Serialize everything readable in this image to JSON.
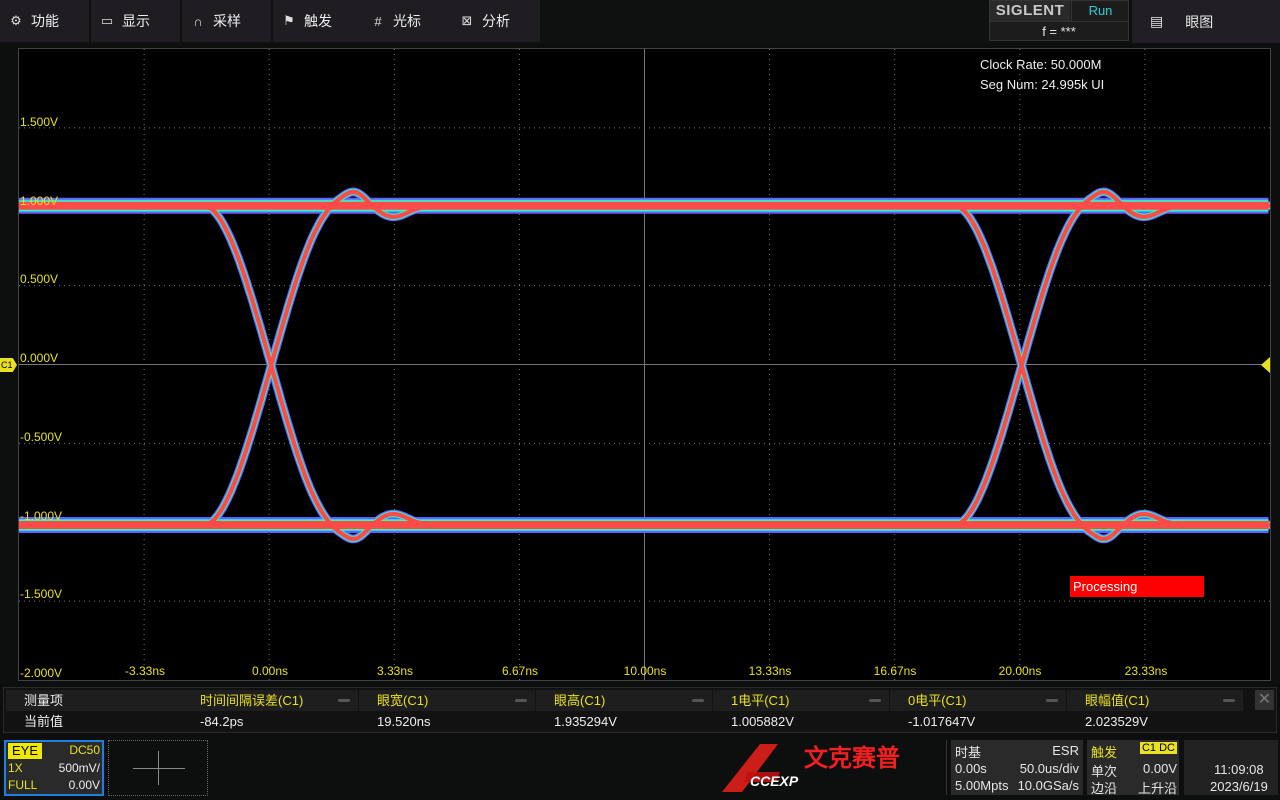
{
  "menu": [
    {
      "icon": "gear-icon",
      "label": "功能"
    },
    {
      "icon": "monitor-icon",
      "label": "显示"
    },
    {
      "icon": "acquire-icon",
      "label": "采样"
    },
    {
      "icon": "flag-icon",
      "label": "触发"
    },
    {
      "icon": "cursor-icon",
      "label": "光标"
    },
    {
      "icon": "analysis-icon",
      "label": "分析"
    }
  ],
  "brand": {
    "logo": "SIGLENT",
    "status": "Run",
    "freq": "f = ***"
  },
  "mode_button": {
    "icon": "document-icon",
    "label": "眼图"
  },
  "plot": {
    "clock_rate": "Clock Rate: 50.000M",
    "seg_num": "Seg Num: 24.995k UI",
    "y_labels": [
      "1.500V",
      "1.000V",
      "0.500V",
      "0.000V",
      "-0.500V",
      "-1.000V",
      "-1.500V",
      "-2.000V"
    ],
    "x_labels": [
      "-3.33ns",
      "0.00ns",
      "3.33ns",
      "6.67ns",
      "10.00ns",
      "13.33ns",
      "16.67ns",
      "20.00ns",
      "23.33ns"
    ],
    "channel_marker": "C1",
    "processing": "Processing",
    "x_range_ns": [
      -6.67,
      26.67
    ],
    "y_range_v": [
      -2.0,
      2.0
    ],
    "eye": {
      "high_v": 1.005882,
      "low_v": -1.017647,
      "crossings_ns": [
        0.0,
        20.0
      ],
      "ui_ns": 20.0
    },
    "colors": {
      "core": "#ff4a4a",
      "mid": "#3dff9a",
      "edge": "#22d8ff",
      "outer": "#6a5cff",
      "grid": "#777777",
      "label": "#e8e020"
    }
  },
  "measurements": {
    "row_label_header": "测量项",
    "row_label_value": "当前值",
    "items": [
      {
        "name": "时间间隔误差(C1)",
        "value": "-84.2ps"
      },
      {
        "name": "眼宽(C1)",
        "value": "19.520ns"
      },
      {
        "name": "眼高(C1)",
        "value": "1.935294V"
      },
      {
        "name": "1电平(C1)",
        "value": "1.005882V"
      },
      {
        "name": "0电平(C1)",
        "value": "-1.017647V"
      },
      {
        "name": "眼幅值(C1)",
        "value": "2.023529V"
      }
    ]
  },
  "channel": {
    "mode": "EYE",
    "coupling": "DC50",
    "probe": "1X",
    "scale": "500mV/",
    "bandwidth": "FULL",
    "offset": "0.00V"
  },
  "timebase": {
    "title": "时基",
    "mode": "ESR",
    "delay": "0.00s",
    "scale": "50.0us/div",
    "points": "5.00Mpts",
    "rate": "10.0GSa/s"
  },
  "trigger": {
    "title": "触发",
    "source": "C1 DC",
    "sweep": "单次",
    "level": "0.00V",
    "type": "边沿",
    "slope": "上升沿"
  },
  "clock": {
    "time": "11:09:08",
    "date": "2023/6/19"
  },
  "watermark": {
    "brand": "CCEXP",
    "cn": "文克赛普"
  }
}
